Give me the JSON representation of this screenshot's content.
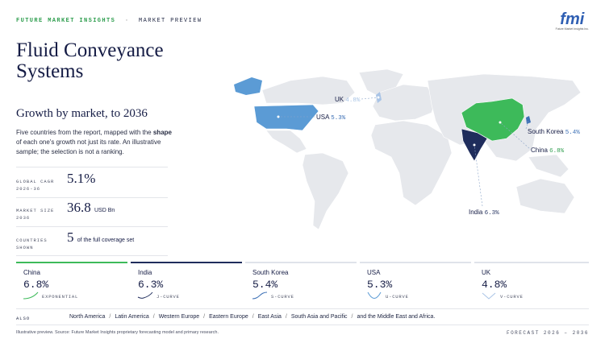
{
  "header": {
    "brand": "FUTURE MARKET INSIGHTS",
    "separator": "·",
    "section": "MARKET PREVIEW"
  },
  "logo": {
    "mark": "fmi",
    "caption": "Future Market Insights Inc."
  },
  "title": "Fluid Conveyance Systems",
  "subtitle": "Growth by market, to 2036",
  "description": {
    "before": "Five countries from the report, mapped with the ",
    "bold": "shape",
    "after": " of each one's growth not just its rate. An illustrative sample; the selection is not a ranking."
  },
  "stats": [
    {
      "label": [
        "GLOBAL CAGR",
        "2026-36"
      ],
      "value": "5.1%"
    },
    {
      "label": [
        "MARKET SIZE",
        "2036"
      ],
      "value": "36.8",
      "unit": "USD Bn"
    },
    {
      "label": [
        "COUNTRIES",
        "SHOWN"
      ],
      "value": "5",
      "unit": "of the full coverage set"
    }
  ],
  "map_labels": [
    {
      "country": "UK",
      "value": "4.8%"
    },
    {
      "country": "USA",
      "value": "5.3%"
    },
    {
      "country": "South Korea",
      "value": "5.4%"
    },
    {
      "country": "China",
      "value": "6.8%"
    },
    {
      "country": "India",
      "value": "6.3%"
    }
  ],
  "cards": [
    {
      "name": "China",
      "value": "6.8%",
      "shape": "EXPONENTIAL"
    },
    {
      "name": "India",
      "value": "6.3%",
      "shape": "J-CURVE"
    },
    {
      "name": "South Korea",
      "value": "5.4%",
      "shape": "S-CURVE"
    },
    {
      "name": "USA",
      "value": "5.3%",
      "shape": "U-CURVE"
    },
    {
      "name": "UK",
      "value": "4.8%",
      "shape": "V-CURVE"
    }
  ],
  "also": {
    "label": "ALSO",
    "regions": [
      "North America",
      "Latin America",
      "Western Europe",
      "Eastern Europe",
      "East Asia",
      "South Asia and Pacific",
      "and the Middle East and Africa."
    ],
    "separator": "/"
  },
  "footer": {
    "note": "Illustrative preview. Source: Future Market Insights proprietary forecasting model and primary research.",
    "forecast": "FORECAST 2026 – 2036"
  }
}
